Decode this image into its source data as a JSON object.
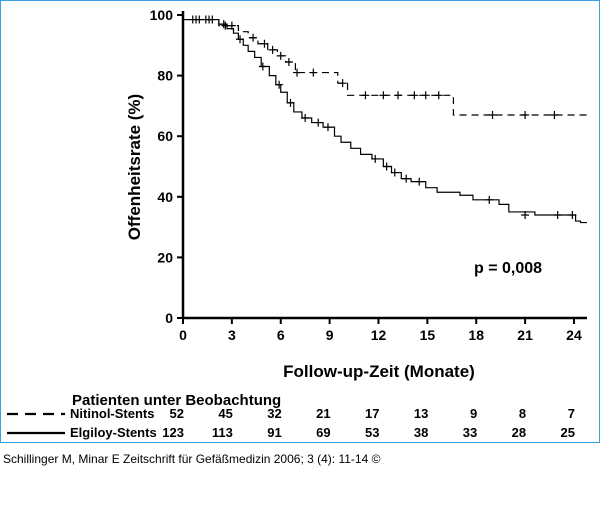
{
  "chart_data": {
    "type": "line",
    "subtype": "kaplan-meier",
    "ylabel": "Offenheitsrate (%)",
    "xlabel": "Follow-up-Zeit (Monate)",
    "x_ticks": [
      0,
      3,
      6,
      9,
      12,
      15,
      18,
      21,
      24
    ],
    "y_ticks": [
      0,
      20,
      40,
      60,
      80,
      100
    ],
    "xlim": [
      0,
      24.8
    ],
    "ylim": [
      0,
      100
    ],
    "annotation": "p = 0,008",
    "series": [
      {
        "name": "Nitinol-Stents",
        "line_style": "dashed",
        "steps": [
          [
            0,
            98.5
          ],
          [
            2.2,
            96.5
          ],
          [
            3.4,
            94.5
          ],
          [
            4.0,
            92.5
          ],
          [
            4.6,
            90.5
          ],
          [
            5.2,
            88.5
          ],
          [
            5.8,
            86.5
          ],
          [
            6.3,
            84.5
          ],
          [
            6.9,
            81
          ],
          [
            9.5,
            77.5
          ],
          [
            10.1,
            73.5
          ],
          [
            16.6,
            67
          ],
          [
            24.8,
            67
          ]
        ],
        "censor_marks": [
          [
            0.6,
            98.5
          ],
          [
            1.0,
            98.5
          ],
          [
            1.4,
            98.5
          ],
          [
            1.8,
            98.5
          ],
          [
            2.6,
            96.5
          ],
          [
            3.0,
            96.5
          ],
          [
            4.3,
            92.5
          ],
          [
            5.0,
            90.5
          ],
          [
            5.5,
            88.5
          ],
          [
            6.0,
            86.5
          ],
          [
            6.5,
            84.5
          ],
          [
            7.0,
            81
          ],
          [
            8.0,
            81
          ],
          [
            9.8,
            77.5
          ],
          [
            11.2,
            73.5
          ],
          [
            12.3,
            73.5
          ],
          [
            13.2,
            73.5
          ],
          [
            14.2,
            73.5
          ],
          [
            14.9,
            73.5
          ],
          [
            15.7,
            73.5
          ],
          [
            19.0,
            67
          ],
          [
            21.0,
            67
          ],
          [
            22.8,
            67
          ]
        ]
      },
      {
        "name": "Elgiloy-Stents",
        "line_style": "solid",
        "steps": [
          [
            0,
            98.5
          ],
          [
            2.2,
            97
          ],
          [
            2.7,
            95.5
          ],
          [
            3.1,
            94
          ],
          [
            3.4,
            92
          ],
          [
            3.7,
            90
          ],
          [
            4.0,
            88
          ],
          [
            4.4,
            86
          ],
          [
            4.8,
            83
          ],
          [
            5.3,
            80
          ],
          [
            5.7,
            77
          ],
          [
            6.0,
            74.5
          ],
          [
            6.4,
            71
          ],
          [
            6.8,
            68
          ],
          [
            7.3,
            66
          ],
          [
            7.9,
            64.5
          ],
          [
            8.6,
            63
          ],
          [
            9.3,
            60
          ],
          [
            9.7,
            58
          ],
          [
            10.3,
            56
          ],
          [
            10.9,
            54
          ],
          [
            11.6,
            52.5
          ],
          [
            12.3,
            50
          ],
          [
            12.8,
            48
          ],
          [
            13.4,
            46
          ],
          [
            14.0,
            45
          ],
          [
            14.9,
            43
          ],
          [
            15.6,
            41.5
          ],
          [
            17.0,
            40.5
          ],
          [
            17.8,
            39
          ],
          [
            19.4,
            37.5
          ],
          [
            20.0,
            35
          ],
          [
            21.6,
            34
          ],
          [
            24.1,
            32
          ],
          [
            24.4,
            31.5
          ],
          [
            24.8,
            31.5
          ]
        ],
        "censor_marks": [
          [
            0.8,
            98.5
          ],
          [
            1.6,
            98.5
          ],
          [
            2.5,
            97
          ],
          [
            3.5,
            92
          ],
          [
            4.9,
            83
          ],
          [
            5.9,
            77
          ],
          [
            6.6,
            71
          ],
          [
            7.5,
            66
          ],
          [
            8.3,
            64.5
          ],
          [
            8.9,
            63
          ],
          [
            11.8,
            52.5
          ],
          [
            12.5,
            50
          ],
          [
            13.0,
            48
          ],
          [
            13.7,
            46
          ],
          [
            14.5,
            45
          ],
          [
            18.8,
            39
          ],
          [
            21.0,
            34
          ],
          [
            23.0,
            34
          ],
          [
            23.9,
            34
          ]
        ]
      }
    ]
  },
  "risk_table": {
    "title": "Patienten unter Beobachtung",
    "rows": [
      {
        "label": "Nitinol-Stents",
        "line_style": "dashed",
        "counts": [
          "52",
          "45",
          "32",
          "21",
          "17",
          "13",
          "9",
          "8",
          "7"
        ]
      },
      {
        "label": "Elgiloy-Stents",
        "line_style": "solid",
        "counts": [
          "123",
          "113",
          "91",
          "69",
          "53",
          "38",
          "33",
          "28",
          "25"
        ]
      }
    ]
  },
  "caption": "Schillinger M, Minar E Zeitschrift für Gefäßmedizin 2006; 3 (4): 11-14 ©"
}
